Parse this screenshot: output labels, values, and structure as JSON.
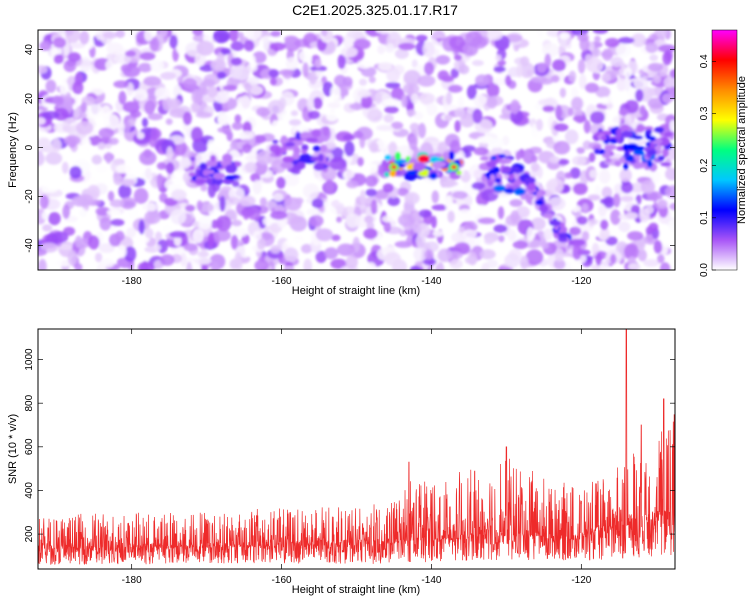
{
  "title": "C2E1.2025.325.01.17.R17",
  "chart_data": [
    {
      "type": "heatmap",
      "title": "C2E1.2025.325.01.17.R17",
      "xlabel": "Height of straight line (km)",
      "ylabel": "Frequency (Hz)",
      "xlim": [
        -192.5,
        -107.5
      ],
      "ylim": [
        -50,
        48
      ],
      "xticks": [
        -180,
        -160,
        -140,
        -120
      ],
      "yticks": [
        -40,
        -20,
        0,
        20,
        40
      ],
      "colorbar": {
        "label": "Normalized spectral amplitude",
        "range": [
          0,
          0.46
        ],
        "ticks": [
          0.0,
          0.1,
          0.2,
          0.3,
          0.4
        ],
        "colors": [
          "#ffffff",
          "#a855f7",
          "#0000ff",
          "#00c8ff",
          "#00ff80",
          "#ffff00",
          "#ff8c00",
          "#ff0000",
          "#ff00ff"
        ]
      },
      "features": [
        {
          "name": "band segment",
          "x": [
            -172,
            -166
          ],
          "freq": [
            -14,
            -4
          ],
          "max_amplitude": 0.12
        },
        {
          "name": "band segment",
          "x": [
            -161,
            -154
          ],
          "freq": [
            -9,
            6
          ],
          "max_amplitude": 0.1
        },
        {
          "name": "strong band",
          "x": [
            -146,
            -136
          ],
          "freq": [
            -12,
            -3
          ],
          "max_amplitude": 0.42
        },
        {
          "name": "band segment",
          "x": [
            -133,
            -128
          ],
          "freq": [
            -18,
            -3
          ],
          "max_amplitude": 0.15
        },
        {
          "name": "descending streak",
          "x": [
            -128,
            -122
          ],
          "freq": [
            -38,
            -10
          ],
          "max_amplitude": 0.12
        },
        {
          "name": "band segment",
          "x": [
            -118,
            -108
          ],
          "freq": [
            -8,
            8
          ],
          "max_amplitude": 0.15
        }
      ]
    },
    {
      "type": "line",
      "xlabel": "Height of straight line (km)",
      "ylabel": "SNR (10 * v/v)",
      "xlim": [
        -192.5,
        -107.5
      ],
      "ylim": [
        40,
        1140
      ],
      "xticks": [
        -180,
        -160,
        -140,
        -120
      ],
      "yticks": [
        200,
        400,
        600,
        800,
        1000
      ],
      "color": "#ee2a2a",
      "envelope": {
        "x": [
          -192.5,
          -185,
          -180,
          -170,
          -160,
          -150,
          -145,
          -143,
          -140,
          -133,
          -130,
          -125,
          -120,
          -116,
          -114,
          -112,
          -110,
          -107.5
        ],
        "baseline": [
          130,
          130,
          135,
          140,
          145,
          150,
          155,
          170,
          170,
          180,
          190,
          185,
          190,
          205,
          230,
          240,
          260,
          270
        ],
        "upper": [
          280,
          300,
          300,
          310,
          320,
          330,
          350,
          470,
          480,
          500,
          560,
          460,
          420,
          480,
          560,
          650,
          700,
          780
        ],
        "lower": [
          60,
          60,
          60,
          65,
          65,
          65,
          60,
          70,
          70,
          80,
          80,
          75,
          80,
          80,
          90,
          90,
          100,
          100
        ]
      },
      "peaks": [
        {
          "x": -114,
          "y": 1140
        },
        {
          "x": -130,
          "y": 600
        },
        {
          "x": -143,
          "y": 530
        },
        {
          "x": -112,
          "y": 700
        },
        {
          "x": -109,
          "y": 820
        }
      ]
    }
  ]
}
